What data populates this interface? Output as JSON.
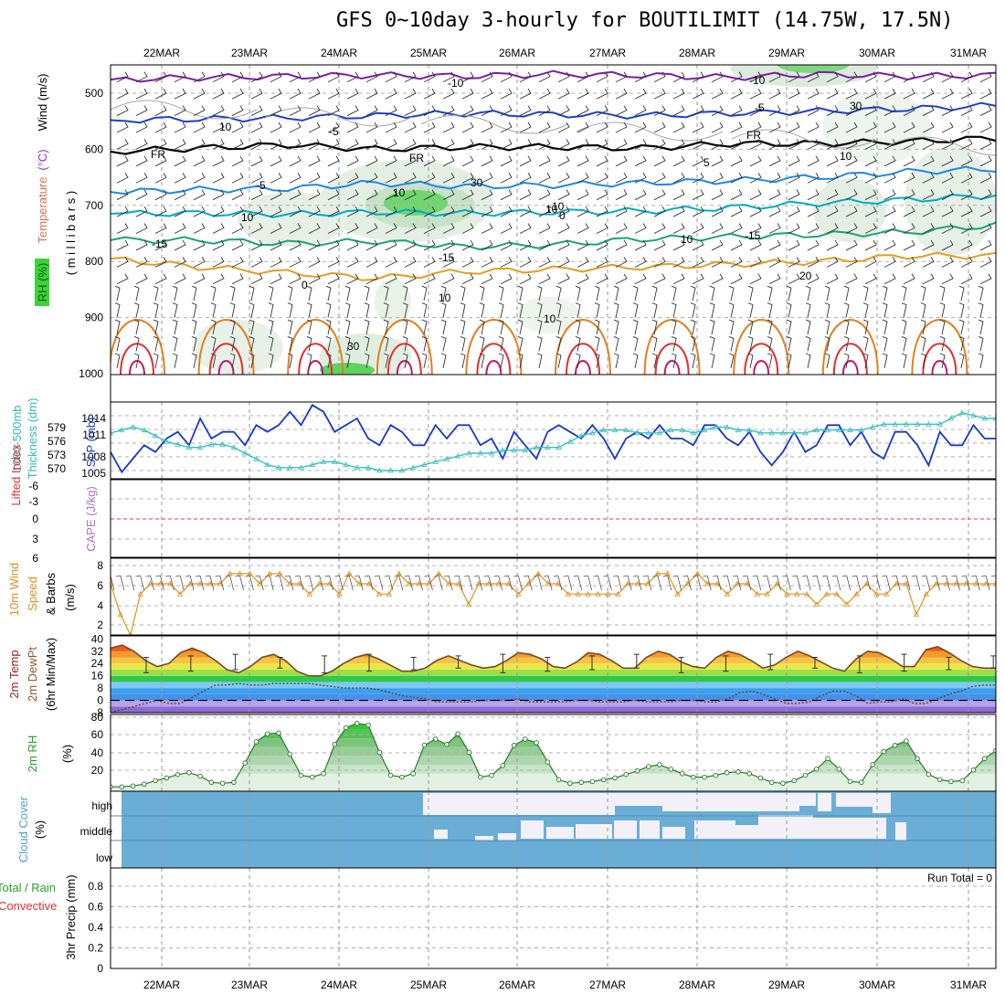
{
  "title": "GFS 0~10day 3-hourly for BOUTILIMIT (14.75W, 17.5N)",
  "chart_data": {
    "type": "meteogram",
    "dates": [
      "22MAR",
      "23MAR",
      "24MAR",
      "25MAR",
      "26MAR",
      "27MAR",
      "28MAR",
      "29MAR",
      "30MAR",
      "31MAR"
    ],
    "run_total_label": "Run Total = 0",
    "panels": {
      "upper_air": {
        "ylabel_parts": [
          "RH (%)",
          "Temperature",
          " (°C)",
          "Wind (m/s)"
        ],
        "yunit": "( m i l l i b a r s )",
        "yticks": [
          "500",
          "600",
          "700",
          "800",
          "900",
          "1000"
        ],
        "isotherm_labels": [
          "-10",
          "-10",
          "-5",
          "-5",
          "FR",
          "FR",
          "FR",
          "-5",
          "5",
          "-10",
          "10",
          "10",
          "-15",
          "-15",
          "-15",
          "20",
          "0",
          "0"
        ],
        "rh_contour_labels": [
          "10",
          "10",
          "30",
          "10",
          "30",
          "10",
          "30",
          "10",
          "10"
        ],
        "isotherms": [
          {
            "label": "-10",
            "color": "#7b1fa2",
            "pressure": [
              476,
              472,
              470,
              468,
              470,
              466,
              468,
              472,
              466,
              470,
              468
            ]
          },
          {
            "label": "-5",
            "color": "#1e40c8",
            "pressure": [
              548,
              546,
              544,
              540,
              536,
              538,
              540,
              536,
              532,
              528,
              522
            ]
          },
          {
            "label": "FR",
            "color": "#000000",
            "pressure": [
              604,
              598,
              592,
              600,
              596,
              596,
              598,
              590,
              590,
              586,
              580
            ]
          },
          {
            "label": "5",
            "color": "#1e88e5",
            "pressure": [
              676,
              672,
              670,
              660,
              666,
              664,
              660,
              656,
              650,
              640,
              635
            ]
          },
          {
            "label": "10",
            "color": "#00acc1",
            "pressure": [
              715,
              714,
              716,
              712,
              714,
              712,
              710,
              704,
              696,
              690,
              682
            ]
          },
          {
            "label": "15",
            "color": "#1aa37a",
            "pressure": [
              762,
              762,
              768,
              764,
              774,
              770,
              760,
              756,
              752,
              748,
              735
            ]
          },
          {
            "label": "20",
            "color": "#e0a020",
            "pressure": [
              795,
              810,
              820,
              830,
              818,
              814,
              810,
              805,
              800,
              790,
              790
            ]
          }
        ]
      },
      "pressure_thickness": {
        "ylabel_parts": [
          "1000-500mb",
          "Thickness (dm)",
          "SLP (mb)"
        ],
        "thickness_ticks": [
          "579",
          "576",
          "573",
          "570"
        ],
        "slp_ticks": [
          "1014",
          "1011",
          "1008",
          "1005"
        ],
        "slp_mb": [
          1009,
          1006,
          1008,
          1010,
          1009,
          1011,
          1012,
          1010,
          1014,
          1011,
          1012,
          1012,
          1010,
          1013,
          1012,
          1013,
          1015,
          1013,
          1016,
          1015,
          1012,
          1013,
          1014,
          1011,
          1010,
          1013,
          1012,
          1010,
          1010,
          1013,
          1011,
          1013,
          1013,
          1010,
          1011,
          1008,
          1012,
          1010,
          1008,
          1012,
          1013,
          1012,
          1011,
          1013,
          1011,
          1008,
          1011,
          1012,
          1011,
          1013,
          1011,
          1011,
          1010,
          1013,
          1013,
          1011,
          1010,
          1012,
          1009,
          1007,
          1009,
          1012,
          1009,
          1010,
          1013,
          1013,
          1010,
          1012,
          1009,
          1008,
          1012,
          1012,
          1010,
          1007,
          1012,
          1010,
          1010,
          1013,
          1011,
          1011
        ],
        "thickness_dm": [
          576.5,
          577,
          577.5,
          577,
          576,
          575,
          574.5,
          574,
          574,
          574.5,
          574.5,
          574,
          573,
          572,
          571,
          570.5,
          570.5,
          570.5,
          571,
          571.5,
          571.5,
          571,
          570.5,
          570.5,
          570,
          570,
          570,
          570.5,
          571,
          571.5,
          572,
          572.5,
          573,
          573,
          573,
          573.5,
          573.5,
          573.5,
          574,
          574,
          574,
          575,
          576,
          576.5,
          577,
          577,
          577,
          576.5,
          576.5,
          576.5,
          577,
          577,
          576.5,
          577,
          577.5,
          577.5,
          577,
          577,
          576.5,
          576.5,
          576.5,
          576.5,
          576.5,
          577,
          577,
          577,
          577,
          577,
          577.5,
          578,
          578,
          578,
          578,
          578,
          578,
          579,
          580,
          579.5,
          579,
          579
        ]
      },
      "stability": {
        "ylabel_parts": [
          "Lifted Index",
          "CAPE (J/kg)"
        ],
        "li_ticks": [
          "-6",
          "-3",
          "0",
          "3",
          "6"
        ]
      },
      "surface_wind": {
        "ylabel_parts": [
          "10m Wind",
          "Speed",
          "& Barbs",
          "(m/s)"
        ],
        "yticks": [
          "8",
          "6",
          "4",
          "2"
        ],
        "speed_ms": [
          6,
          3,
          1,
          5,
          6,
          6,
          6,
          5,
          6,
          6,
          6,
          6,
          7,
          7,
          7,
          6,
          7,
          7,
          6,
          6,
          5,
          6,
          6,
          5,
          7,
          6,
          6,
          5,
          5,
          7,
          6,
          6,
          6,
          7,
          6,
          6,
          4,
          6,
          6,
          6,
          6,
          5,
          6,
          7,
          6,
          6,
          5,
          5,
          5,
          5,
          5,
          5,
          6,
          6,
          6,
          7,
          7,
          5,
          6,
          7,
          6,
          6,
          5,
          6,
          6,
          5,
          5,
          6,
          5,
          5,
          5,
          4,
          5,
          5,
          4,
          5,
          6,
          5,
          5,
          6,
          6,
          3,
          5,
          6,
          6,
          6,
          6,
          6,
          6,
          6
        ]
      },
      "temperature": {
        "ylabel_parts": [
          "2m Temp",
          "2m DewPt",
          "(6hr Min/Max)"
        ],
        "yticks": [
          "40",
          "32",
          "24",
          "16",
          "8",
          "0",
          "-8"
        ],
        "temp_c": [
          34,
          36,
          32,
          26,
          22,
          24,
          31,
          34,
          31,
          26,
          20,
          18,
          22,
          28,
          30,
          26,
          19,
          16,
          16,
          19,
          24,
          28,
          30,
          27,
          23,
          19,
          19,
          21,
          26,
          29,
          26,
          23,
          21,
          22,
          26,
          31,
          30,
          27,
          22,
          21,
          25,
          31,
          30,
          26,
          21,
          21,
          28,
          32,
          30,
          25,
          22,
          21,
          28,
          32,
          30,
          26,
          21,
          23,
          28,
          32,
          29,
          25,
          21,
          19,
          27,
          32,
          31,
          27,
          22,
          22,
          33,
          35,
          31,
          26,
          22,
          21,
          21
        ],
        "dewpoint_c": [
          -8,
          -6,
          -4,
          -2,
          0,
          -2,
          -2,
          2,
          6,
          10,
          10,
          11,
          10,
          10,
          11,
          11,
          11,
          11,
          10,
          9,
          8,
          8,
          8,
          7,
          5,
          3,
          2,
          1,
          -1,
          -1,
          -1,
          -1,
          0,
          0,
          0,
          1,
          -1,
          -1,
          -1,
          -1,
          0,
          0,
          -1,
          -1,
          -1,
          0,
          -1,
          -1,
          -1,
          0,
          0,
          -1,
          -1,
          1,
          5,
          6,
          4,
          1,
          -2,
          -2,
          -1,
          3,
          6,
          6,
          3,
          -2,
          -1,
          -1,
          1,
          -2,
          -2,
          1,
          4,
          6,
          9,
          10,
          10
        ]
      },
      "relative_humidity": {
        "ylabel_parts": [
          "2m RH",
          "(%)"
        ],
        "yticks": [
          "80",
          "60",
          "40",
          "20"
        ],
        "rh_pct": [
          5,
          5,
          6,
          8,
          12,
          15,
          19,
          21,
          17,
          10,
          9,
          10,
          32,
          56,
          65,
          66,
          42,
          18,
          16,
          20,
          53,
          72,
          77,
          75,
          44,
          18,
          16,
          20,
          52,
          59,
          53,
          65,
          44,
          16,
          18,
          29,
          52,
          59,
          55,
          33,
          13,
          9,
          10,
          11,
          13,
          15,
          19,
          23,
          28,
          30,
          25,
          20,
          16,
          16,
          18,
          21,
          22,
          20,
          15,
          10,
          9,
          12,
          18,
          25,
          37,
          25,
          11,
          10,
          30,
          45,
          52,
          57,
          37,
          19,
          13,
          11,
          12,
          24,
          37,
          46
        ]
      },
      "cloud_cover": {
        "ylabel_parts": [
          "Cloud Cover",
          "(%)"
        ],
        "levels": [
          "high",
          "middle",
          "low"
        ]
      },
      "precipitation": {
        "ylabel_parts": [
          "Total / Rain",
          "Convective",
          "3hr Precip (mm)"
        ],
        "yticks": [
          "0.8",
          "0.6",
          "0.4",
          "0.2",
          "0"
        ],
        "precip_mm": [
          0,
          0,
          0,
          0,
          0,
          0,
          0,
          0,
          0,
          0
        ]
      }
    }
  }
}
